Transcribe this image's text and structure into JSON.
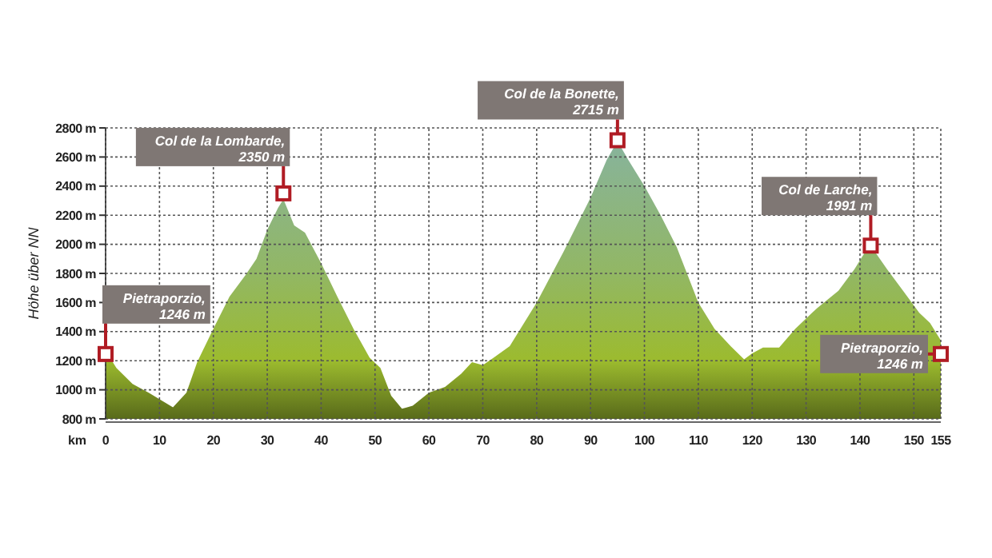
{
  "chart_data": {
    "type": "area",
    "xlabel": "km",
    "ylabel": "Höhe über NN",
    "x": [
      0,
      2,
      5,
      8,
      12.5,
      15,
      17,
      20,
      23,
      26,
      28,
      30,
      32,
      33,
      35,
      37,
      40,
      43,
      46,
      49,
      51,
      53,
      55,
      57,
      60,
      63,
      66,
      68,
      70,
      72,
      75,
      80,
      85,
      90,
      93,
      95,
      97,
      100,
      103,
      106,
      110,
      113,
      116,
      118.5,
      120,
      122,
      125,
      128,
      132,
      136,
      139,
      141,
      142,
      145,
      148,
      151,
      153,
      155
    ],
    "series": [
      {
        "color": "#9cbb2e",
        "values": [
          1270,
          1150,
          1040,
          980,
          880,
          980,
          1190,
          1420,
          1640,
          1790,
          1900,
          2100,
          2250,
          2310,
          2130,
          2080,
          1870,
          1640,
          1420,
          1220,
          1150,
          960,
          870,
          890,
          980,
          1020,
          1110,
          1190,
          1170,
          1220,
          1300,
          1600,
          1950,
          2320,
          2580,
          2710,
          2580,
          2400,
          2200,
          1980,
          1600,
          1420,
          1300,
          1210,
          1250,
          1290,
          1290,
          1420,
          1560,
          1680,
          1830,
          1950,
          1990,
          1830,
          1680,
          1530,
          1460,
          1340
        ]
      }
    ],
    "xlim": [
      0,
      155
    ],
    "xticks": [
      0,
      10,
      20,
      30,
      40,
      50,
      60,
      70,
      80,
      90,
      100,
      110,
      120,
      130,
      140,
      150,
      155
    ],
    "ylim": [
      800,
      2800
    ],
    "yticks": [
      {
        "value": 800,
        "label": "800 m"
      },
      {
        "value": 1000,
        "label": "1000 m"
      },
      {
        "value": 1200,
        "label": "1200 m"
      },
      {
        "value": 1400,
        "label": "1400 m"
      },
      {
        "value": 1600,
        "label": "1600 m"
      },
      {
        "value": 1800,
        "label": "1800 m"
      },
      {
        "value": 2000,
        "label": "2000 m"
      },
      {
        "value": 2200,
        "label": "2200 m"
      },
      {
        "value": 2400,
        "label": "2400 m"
      },
      {
        "value": 2600,
        "label": "2600 m"
      },
      {
        "value": 2800,
        "label": "2800 m"
      }
    ],
    "grid": true,
    "annotations": [
      {
        "text": "Pietraporzio, 1246 m",
        "x": 0,
        "y": 1246
      },
      {
        "text": "Col de la Lombarde, 2350 m",
        "x": 33,
        "y": 2350
      },
      {
        "text": "Col de la Bonette, 2715 m",
        "x": 95,
        "y": 2715
      },
      {
        "text": "Col de Larche, 1991 m",
        "x": 142,
        "y": 1991
      },
      {
        "text": "Pietraporzio, 1246 m",
        "x": 155,
        "y": 1246
      }
    ]
  }
}
